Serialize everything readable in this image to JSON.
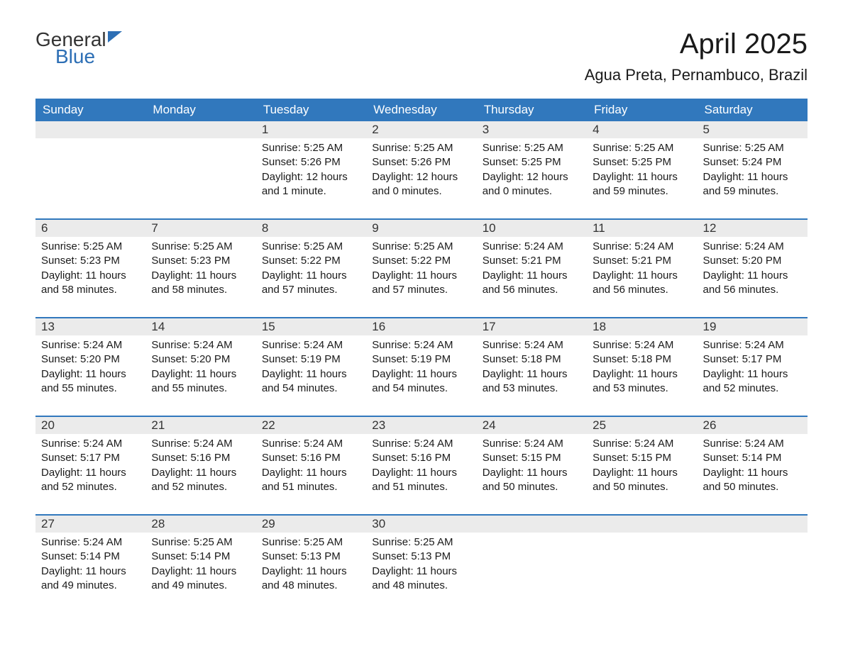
{
  "logo": {
    "text_general": "General",
    "text_blue": "Blue",
    "triangle_color": "#2d6fb5"
  },
  "title": "April 2025",
  "location": "Agua Preta, Pernambuco, Brazil",
  "colors": {
    "header_bg": "#3178bd",
    "header_text": "#ffffff",
    "day_number_bg": "#ebebeb",
    "text": "#1a1a1a",
    "week_border": "#3178bd",
    "logo_blue": "#2d6fb5"
  },
  "fonts": {
    "title_size_pt": 30,
    "location_size_pt": 17,
    "header_size_pt": 13,
    "day_number_size_pt": 13,
    "body_size_pt": 11
  },
  "days_of_week": [
    "Sunday",
    "Monday",
    "Tuesday",
    "Wednesday",
    "Thursday",
    "Friday",
    "Saturday"
  ],
  "weeks": [
    [
      {
        "day": "",
        "sunrise": "",
        "sunset": "",
        "daylight": ""
      },
      {
        "day": "",
        "sunrise": "",
        "sunset": "",
        "daylight": ""
      },
      {
        "day": "1",
        "sunrise": "Sunrise: 5:25 AM",
        "sunset": "Sunset: 5:26 PM",
        "daylight": "Daylight: 12 hours and 1 minute."
      },
      {
        "day": "2",
        "sunrise": "Sunrise: 5:25 AM",
        "sunset": "Sunset: 5:26 PM",
        "daylight": "Daylight: 12 hours and 0 minutes."
      },
      {
        "day": "3",
        "sunrise": "Sunrise: 5:25 AM",
        "sunset": "Sunset: 5:25 PM",
        "daylight": "Daylight: 12 hours and 0 minutes."
      },
      {
        "day": "4",
        "sunrise": "Sunrise: 5:25 AM",
        "sunset": "Sunset: 5:25 PM",
        "daylight": "Daylight: 11 hours and 59 minutes."
      },
      {
        "day": "5",
        "sunrise": "Sunrise: 5:25 AM",
        "sunset": "Sunset: 5:24 PM",
        "daylight": "Daylight: 11 hours and 59 minutes."
      }
    ],
    [
      {
        "day": "6",
        "sunrise": "Sunrise: 5:25 AM",
        "sunset": "Sunset: 5:23 PM",
        "daylight": "Daylight: 11 hours and 58 minutes."
      },
      {
        "day": "7",
        "sunrise": "Sunrise: 5:25 AM",
        "sunset": "Sunset: 5:23 PM",
        "daylight": "Daylight: 11 hours and 58 minutes."
      },
      {
        "day": "8",
        "sunrise": "Sunrise: 5:25 AM",
        "sunset": "Sunset: 5:22 PM",
        "daylight": "Daylight: 11 hours and 57 minutes."
      },
      {
        "day": "9",
        "sunrise": "Sunrise: 5:25 AM",
        "sunset": "Sunset: 5:22 PM",
        "daylight": "Daylight: 11 hours and 57 minutes."
      },
      {
        "day": "10",
        "sunrise": "Sunrise: 5:24 AM",
        "sunset": "Sunset: 5:21 PM",
        "daylight": "Daylight: 11 hours and 56 minutes."
      },
      {
        "day": "11",
        "sunrise": "Sunrise: 5:24 AM",
        "sunset": "Sunset: 5:21 PM",
        "daylight": "Daylight: 11 hours and 56 minutes."
      },
      {
        "day": "12",
        "sunrise": "Sunrise: 5:24 AM",
        "sunset": "Sunset: 5:20 PM",
        "daylight": "Daylight: 11 hours and 56 minutes."
      }
    ],
    [
      {
        "day": "13",
        "sunrise": "Sunrise: 5:24 AM",
        "sunset": "Sunset: 5:20 PM",
        "daylight": "Daylight: 11 hours and 55 minutes."
      },
      {
        "day": "14",
        "sunrise": "Sunrise: 5:24 AM",
        "sunset": "Sunset: 5:20 PM",
        "daylight": "Daylight: 11 hours and 55 minutes."
      },
      {
        "day": "15",
        "sunrise": "Sunrise: 5:24 AM",
        "sunset": "Sunset: 5:19 PM",
        "daylight": "Daylight: 11 hours and 54 minutes."
      },
      {
        "day": "16",
        "sunrise": "Sunrise: 5:24 AM",
        "sunset": "Sunset: 5:19 PM",
        "daylight": "Daylight: 11 hours and 54 minutes."
      },
      {
        "day": "17",
        "sunrise": "Sunrise: 5:24 AM",
        "sunset": "Sunset: 5:18 PM",
        "daylight": "Daylight: 11 hours and 53 minutes."
      },
      {
        "day": "18",
        "sunrise": "Sunrise: 5:24 AM",
        "sunset": "Sunset: 5:18 PM",
        "daylight": "Daylight: 11 hours and 53 minutes."
      },
      {
        "day": "19",
        "sunrise": "Sunrise: 5:24 AM",
        "sunset": "Sunset: 5:17 PM",
        "daylight": "Daylight: 11 hours and 52 minutes."
      }
    ],
    [
      {
        "day": "20",
        "sunrise": "Sunrise: 5:24 AM",
        "sunset": "Sunset: 5:17 PM",
        "daylight": "Daylight: 11 hours and 52 minutes."
      },
      {
        "day": "21",
        "sunrise": "Sunrise: 5:24 AM",
        "sunset": "Sunset: 5:16 PM",
        "daylight": "Daylight: 11 hours and 52 minutes."
      },
      {
        "day": "22",
        "sunrise": "Sunrise: 5:24 AM",
        "sunset": "Sunset: 5:16 PM",
        "daylight": "Daylight: 11 hours and 51 minutes."
      },
      {
        "day": "23",
        "sunrise": "Sunrise: 5:24 AM",
        "sunset": "Sunset: 5:16 PM",
        "daylight": "Daylight: 11 hours and 51 minutes."
      },
      {
        "day": "24",
        "sunrise": "Sunrise: 5:24 AM",
        "sunset": "Sunset: 5:15 PM",
        "daylight": "Daylight: 11 hours and 50 minutes."
      },
      {
        "day": "25",
        "sunrise": "Sunrise: 5:24 AM",
        "sunset": "Sunset: 5:15 PM",
        "daylight": "Daylight: 11 hours and 50 minutes."
      },
      {
        "day": "26",
        "sunrise": "Sunrise: 5:24 AM",
        "sunset": "Sunset: 5:14 PM",
        "daylight": "Daylight: 11 hours and 50 minutes."
      }
    ],
    [
      {
        "day": "27",
        "sunrise": "Sunrise: 5:24 AM",
        "sunset": "Sunset: 5:14 PM",
        "daylight": "Daylight: 11 hours and 49 minutes."
      },
      {
        "day": "28",
        "sunrise": "Sunrise: 5:25 AM",
        "sunset": "Sunset: 5:14 PM",
        "daylight": "Daylight: 11 hours and 49 minutes."
      },
      {
        "day": "29",
        "sunrise": "Sunrise: 5:25 AM",
        "sunset": "Sunset: 5:13 PM",
        "daylight": "Daylight: 11 hours and 48 minutes."
      },
      {
        "day": "30",
        "sunrise": "Sunrise: 5:25 AM",
        "sunset": "Sunset: 5:13 PM",
        "daylight": "Daylight: 11 hours and 48 minutes."
      },
      {
        "day": "",
        "sunrise": "",
        "sunset": "",
        "daylight": ""
      },
      {
        "day": "",
        "sunrise": "",
        "sunset": "",
        "daylight": ""
      },
      {
        "day": "",
        "sunrise": "",
        "sunset": "",
        "daylight": ""
      }
    ]
  ]
}
